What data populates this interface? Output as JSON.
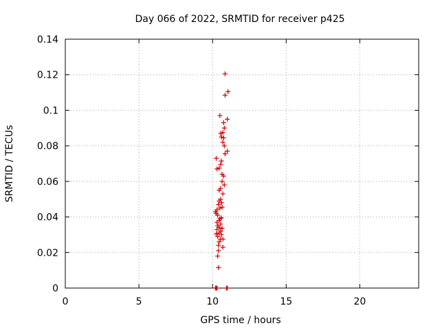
{
  "chart_data": {
    "type": "scatter",
    "title": "Day 066 of 2022, SRMTID for receiver p425",
    "xlabel": "GPS time / hours",
    "ylabel": "SRMTID / TECUs",
    "xlim": [
      0,
      24
    ],
    "ylim": [
      0,
      0.14
    ],
    "xticks": [
      0,
      5,
      10,
      15,
      20
    ],
    "xtick_labels": [
      "0",
      "5",
      "10",
      "15",
      "20"
    ],
    "yticks": [
      0,
      0.02,
      0.04,
      0.06,
      0.08,
      0.1,
      0.12,
      0.14
    ],
    "ytick_labels": [
      "0",
      "0.02",
      "0.04",
      "0.06",
      "0.08",
      "0.1",
      "0.12",
      "0.14"
    ],
    "grid": true,
    "marker": "+",
    "color": "#cc0000",
    "series": [
      {
        "name": "SRMTID",
        "points": [
          [
            10.85,
            0.1205
          ],
          [
            11.05,
            0.1105
          ],
          [
            10.85,
            0.1085
          ],
          [
            10.5,
            0.097
          ],
          [
            11.0,
            0.095
          ],
          [
            10.75,
            0.093
          ],
          [
            10.8,
            0.09
          ],
          [
            10.55,
            0.087
          ],
          [
            10.7,
            0.0875
          ],
          [
            10.6,
            0.085
          ],
          [
            10.75,
            0.0845
          ],
          [
            10.7,
            0.082
          ],
          [
            10.8,
            0.08
          ],
          [
            11.0,
            0.077
          ],
          [
            10.85,
            0.0755
          ],
          [
            10.25,
            0.073
          ],
          [
            10.6,
            0.0715
          ],
          [
            10.55,
            0.0695
          ],
          [
            10.3,
            0.067
          ],
          [
            10.45,
            0.0675
          ],
          [
            10.65,
            0.064
          ],
          [
            10.75,
            0.063
          ],
          [
            10.8,
            0.058
          ],
          [
            10.65,
            0.06
          ],
          [
            10.55,
            0.056
          ],
          [
            10.45,
            0.055
          ],
          [
            10.7,
            0.053
          ],
          [
            10.55,
            0.05
          ],
          [
            10.45,
            0.049
          ],
          [
            10.6,
            0.048
          ],
          [
            10.4,
            0.047
          ],
          [
            10.65,
            0.0455
          ],
          [
            10.5,
            0.045
          ],
          [
            10.3,
            0.044
          ],
          [
            10.2,
            0.043
          ],
          [
            10.25,
            0.042
          ],
          [
            10.35,
            0.041
          ],
          [
            10.6,
            0.0395
          ],
          [
            10.5,
            0.039
          ],
          [
            10.45,
            0.038
          ],
          [
            10.3,
            0.037
          ],
          [
            10.55,
            0.036
          ],
          [
            10.35,
            0.035
          ],
          [
            10.45,
            0.034
          ],
          [
            10.65,
            0.0335
          ],
          [
            10.3,
            0.033
          ],
          [
            10.55,
            0.032
          ],
          [
            10.45,
            0.031
          ],
          [
            10.25,
            0.0305
          ],
          [
            10.6,
            0.03
          ],
          [
            10.35,
            0.029
          ],
          [
            10.55,
            0.0275
          ],
          [
            10.7,
            0.0275
          ],
          [
            10.45,
            0.026
          ],
          [
            10.4,
            0.024
          ],
          [
            10.7,
            0.023
          ],
          [
            10.4,
            0.021
          ],
          [
            10.35,
            0.018
          ],
          [
            10.4,
            0.0115
          ],
          [
            10.2,
            0.0
          ],
          [
            10.25,
            0.0
          ],
          [
            10.3,
            0.0
          ],
          [
            10.95,
            0.0
          ],
          [
            11.0,
            0.0
          ]
        ]
      }
    ]
  }
}
